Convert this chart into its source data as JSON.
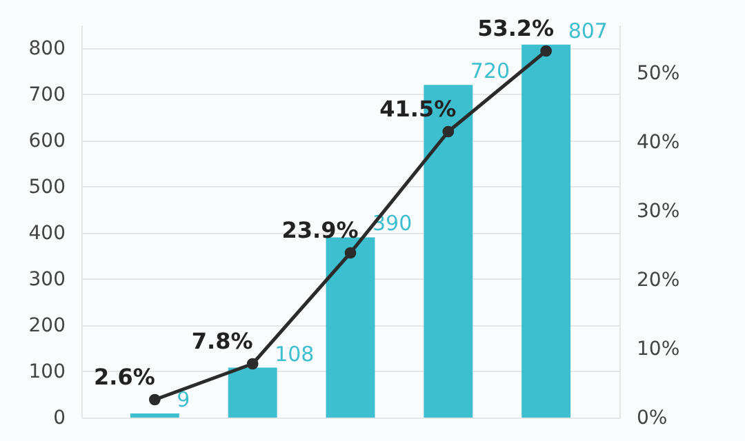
{
  "chart_data": {
    "type": "bar",
    "categories": [
      null,
      null,
      null,
      null,
      null
    ],
    "series": [
      {
        "color": "#3dbfcf",
        "values": [
          9,
          108,
          390,
          720,
          807
        ],
        "data_labels": true
      },
      {
        "type": "line",
        "axis": "y2",
        "color": "#2b2b2b",
        "values": [
          2.6,
          7.8,
          23.9,
          41.5,
          53.2
        ],
        "value_labels": [
          "2.6%",
          "7.8%",
          "23.9%",
          "41.5%",
          "53.2%"
        ]
      }
    ],
    "ylim": [
      0,
      850
    ],
    "yticks": [
      0,
      100,
      200,
      300,
      400,
      500,
      600,
      700,
      800
    ],
    "y2lim": [
      0,
      57
    ],
    "y2ticks": [
      {
        "value": 0,
        "label": "0%"
      },
      {
        "value": 10,
        "label": "10%"
      },
      {
        "value": 20,
        "label": "20%"
      },
      {
        "value": 30,
        "label": "30%"
      },
      {
        "value": 40,
        "label": "40%"
      },
      {
        "value": 50,
        "label": "50%"
      }
    ],
    "grid": "y",
    "marker": "circle",
    "line_style": "solid"
  }
}
